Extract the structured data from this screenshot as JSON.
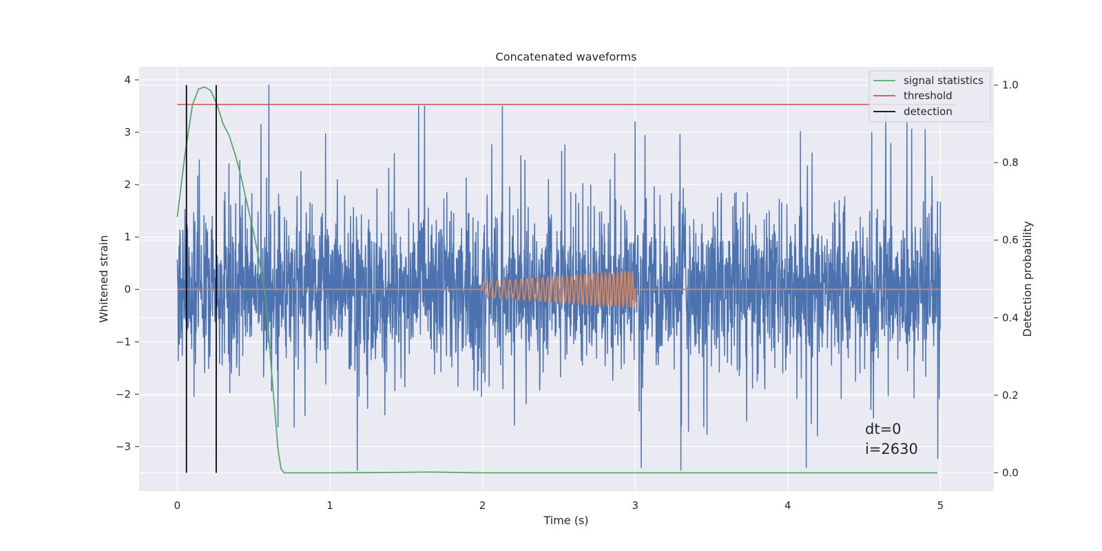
{
  "chart_data": {
    "type": "line",
    "title": "Concatenated waveforms",
    "xlabel": "Time (s)",
    "ylabel": "Whitened strain",
    "ylabel_right": "Detection probability",
    "xlim": [
      -0.25,
      5.35
    ],
    "ylim": [
      -3.85,
      4.25
    ],
    "ylim_right": [
      -0.047,
      1.047
    ],
    "x_ticks": [
      0,
      1,
      2,
      3,
      4,
      5
    ],
    "x_tick_labels": [
      "0",
      "1",
      "2",
      "3",
      "4",
      "5"
    ],
    "y_ticks": [
      -3,
      -2,
      -1,
      0,
      1,
      2,
      3,
      4
    ],
    "y_tick_labels": [
      "−3",
      "−2",
      "−1",
      "0",
      "1",
      "2",
      "3",
      "4"
    ],
    "y_right_ticks": [
      0.0,
      0.2,
      0.4,
      0.6,
      0.8,
      1.0
    ],
    "y_right_tick_labels": [
      "0.0",
      "0.2",
      "0.4",
      "0.6",
      "0.8",
      "1.0"
    ],
    "grid": true,
    "legend_position": "top-right",
    "legend": [
      {
        "label": "signal statistics",
        "color": "#55a868"
      },
      {
        "label": "threshold",
        "color": "#c44e52"
      },
      {
        "label": "detection",
        "color": "#000000"
      }
    ],
    "series": [
      {
        "kind": "noise",
        "axis": "left",
        "color": "#4c72b0",
        "x_range": [
          0,
          5
        ],
        "typical_range": [
          -1.0,
          1.0
        ],
        "max": 3.9,
        "min": -3.45,
        "spikes": [
          {
            "x": 0.6,
            "y": 3.9
          },
          {
            "x": 1.18,
            "y": -3.45
          },
          {
            "x": 3.3,
            "y": -3.45
          },
          {
            "x": 3.0,
            "y": 3.2
          },
          {
            "x": 4.55,
            "y": 3.0
          },
          {
            "x": 4.9,
            "y": 3.05
          }
        ]
      },
      {
        "kind": "chirp",
        "axis": "left",
        "color": "#dd8452",
        "x_range": [
          0,
          5
        ],
        "chirp_start": 2.0,
        "chirp_end": 3.0,
        "amplitude_start": 0.15,
        "amplitude_end": 0.35
      },
      {
        "name": "signal statistics",
        "axis": "right",
        "color": "#55a868",
        "x": [
          0.0,
          0.05,
          0.1,
          0.14,
          0.18,
          0.22,
          0.26,
          0.3,
          0.34,
          0.38,
          0.42,
          0.46,
          0.5,
          0.54,
          0.58,
          0.62,
          0.66,
          0.68,
          0.7,
          0.8,
          1.0,
          1.4,
          1.65,
          2.0,
          3.0,
          4.0,
          4.5,
          4.98
        ],
        "y": [
          0.66,
          0.82,
          0.95,
          0.99,
          0.995,
          0.985,
          0.95,
          0.9,
          0.87,
          0.82,
          0.76,
          0.69,
          0.62,
          0.54,
          0.45,
          0.25,
          0.06,
          0.01,
          0.0,
          0.0,
          0.0,
          0.001,
          0.002,
          0.0,
          0.0,
          0.0,
          0.0,
          0.0
        ]
      },
      {
        "name": "threshold",
        "axis": "right",
        "color": "#c44e52",
        "x": [
          0,
          5.1
        ],
        "y": [
          0.95,
          0.95
        ]
      }
    ],
    "detections": [
      0.06,
      0.255
    ],
    "detection_y_range": [
      0.0,
      1.0
    ],
    "annotations": [
      "dt=0",
      "i=2630"
    ]
  }
}
